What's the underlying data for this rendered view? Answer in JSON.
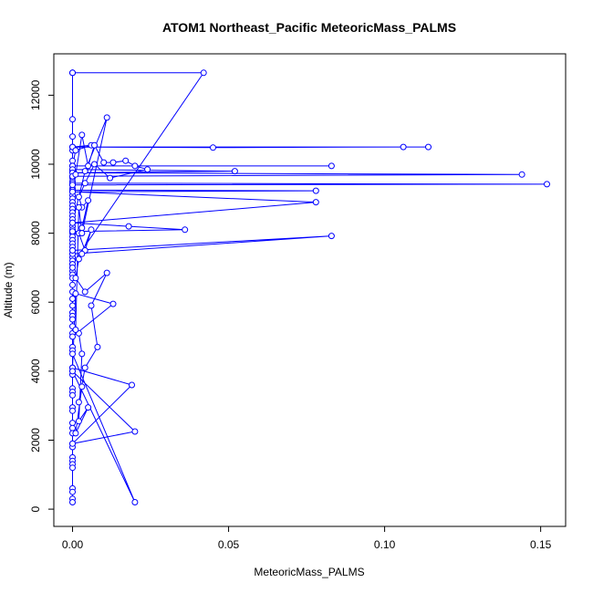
{
  "colors": {
    "series": "#0000ff",
    "axis": "#000000",
    "background": "#ffffff"
  },
  "chart_data": {
    "type": "line",
    "title": "ATOM1 Northeast_Pacific MeteoricMass_PALMS",
    "xlabel": "MeteoricMass_PALMS",
    "ylabel": "Altitude (m)",
    "xlim": [
      -0.006,
      0.158
    ],
    "ylim": [
      -500,
      13200
    ],
    "xticks": [
      0.0,
      0.05,
      0.1,
      0.15
    ],
    "xtick_labels": [
      "0.00",
      "0.05",
      "0.10",
      "0.15"
    ],
    "yticks": [
      0,
      2000,
      4000,
      6000,
      8000,
      10000,
      12000
    ],
    "ytick_labels": [
      "0",
      "2000",
      "4000",
      "6000",
      "8000",
      "10000",
      "12000"
    ],
    "grid": false,
    "legend": "none",
    "series": [
      {
        "x": [
          0.0,
          0.0,
          0.0,
          0.0,
          0.0,
          0.0,
          0.0,
          0.0,
          0.0,
          0.0,
          0.0,
          0.0,
          0.0,
          0.0,
          0.0,
          0.0,
          0.0,
          0.0,
          0.0,
          0.0,
          0.0,
          0.0,
          0.0,
          0.0,
          0.0,
          0.0,
          0.0,
          0.0,
          0.0,
          0.0,
          0.0,
          0.0,
          0.0,
          0.0,
          0.0,
          0.0,
          0.0,
          0.0,
          0.0,
          0.0,
          0.0,
          0.0,
          0.0,
          0.0,
          0.0,
          0.0,
          0.0,
          0.0,
          0.0,
          0.0,
          0.0,
          0.0,
          0.0,
          0.0,
          0.0,
          0.0,
          0.0,
          0.0,
          0.0,
          0.0,
          0.0,
          0.0,
          0.0,
          0.0,
          0.0,
          0.0,
          0.0,
          0.0,
          0.0,
          0.0
        ],
        "y": [
          12650,
          12650,
          11300,
          10800,
          10400,
          10100,
          9950,
          9800,
          9650,
          9600,
          9500,
          9400,
          9300,
          9200,
          9100,
          9000,
          8900,
          8800,
          8700,
          8600,
          8500,
          8400,
          8300,
          8200,
          8100,
          8000,
          7900,
          7800,
          7700,
          7600,
          7500,
          7400,
          7300,
          7200,
          7100,
          7000,
          6900,
          6800,
          6700,
          6500,
          6300,
          6100,
          5900,
          5700,
          5600,
          5300,
          5100,
          4700,
          4600,
          4100,
          4000,
          3900,
          3500,
          3400,
          3300,
          2950,
          2850,
          2500,
          2350,
          2200,
          1900,
          1800,
          1500,
          1400,
          1300,
          1200,
          600,
          500,
          300,
          200
        ]
      },
      {
        "x": [
          0.0,
          0.042,
          0.0,
          0.0,
          0.045,
          0.106,
          0.114,
          0.0,
          0.006,
          0.001,
          0.0,
          0.083,
          0.0,
          0.0,
          0.052,
          0.0,
          0.144,
          0.0,
          0.0,
          0.152,
          0.0,
          0.0,
          0.078,
          0.0,
          0.078,
          0.0,
          0.018,
          0.036,
          0.0,
          0.0,
          0.083,
          0.0,
          0.0,
          0.013,
          0.001,
          0.0,
          0.019,
          0.0,
          0.02,
          0.0,
          0.02,
          0.0,
          0.0,
          0.0
        ],
        "y": [
          12650,
          12650,
          7100,
          10500,
          10480,
          10500,
          10500,
          10500,
          10550,
          10400,
          9950,
          9950,
          9950,
          9850,
          9800,
          9750,
          9700,
          9650,
          9450,
          9420,
          9400,
          9250,
          9230,
          9200,
          8900,
          8300,
          8200,
          8100,
          8050,
          7400,
          7920,
          7500,
          5000,
          5950,
          6250,
          4100,
          3600,
          1900,
          2250,
          4000,
          200,
          4500,
          5500,
          7000
        ]
      },
      {
        "x": [
          0.001,
          0.003,
          0.005,
          0.007,
          0.01,
          0.013,
          0.017,
          0.02,
          0.024,
          0.012,
          0.007,
          0.004,
          0.002,
          0.003,
          0.005,
          0.003,
          0.002,
          0.004,
          0.006,
          0.003,
          0.002,
          0.001,
          0.004,
          0.011,
          0.006,
          0.008,
          0.004,
          0.002,
          0.003,
          0.001,
          0.005,
          0.002,
          0.003,
          0.002,
          0.001,
          0.002,
          0.003,
          0.011,
          0.004,
          0.0
        ],
        "y": [
          9700,
          10850,
          9950,
          10550,
          10050,
          10050,
          10100,
          9950,
          9850,
          9600,
          10000,
          9450,
          9050,
          8750,
          8950,
          8150,
          8000,
          7500,
          8100,
          7400,
          7250,
          6700,
          6300,
          6850,
          5900,
          4700,
          4100,
          3100,
          3550,
          2200,
          2950,
          2550,
          4500,
          5100,
          5200,
          8750,
          8000,
          11350,
          9800,
          8300
        ]
      }
    ]
  }
}
